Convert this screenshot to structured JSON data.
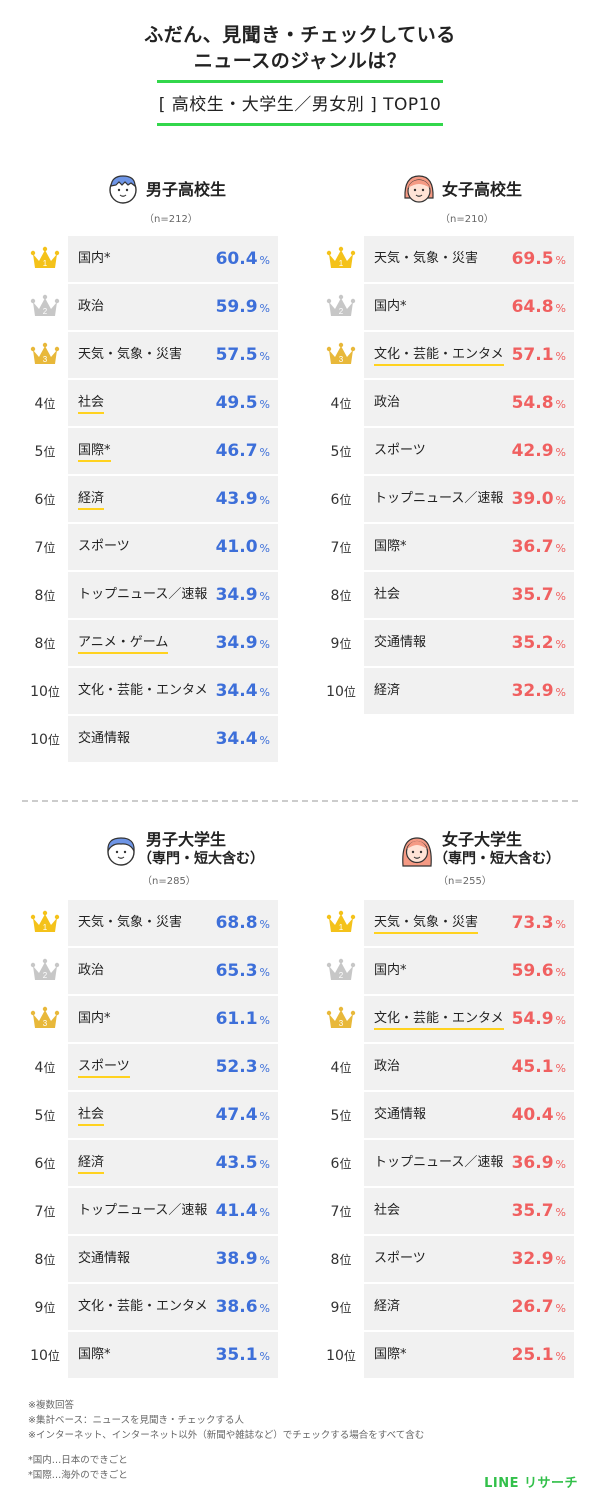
{
  "header": {
    "title_line1": "ふだん、見聞き・チェックしている",
    "title_line2": "ニュースのジャンルは？",
    "subtitle": "[ 高校生・大学生／男女別 ] TOP10"
  },
  "colors": {
    "male": "#3d6fd9",
    "female": "#f06060",
    "accent_green": "#32d74b",
    "underline_yellow": "#ffd21f",
    "gold": "#f4c21a",
    "silver": "#c7c7c7",
    "bronze": "#e8b83a"
  },
  "icons": {
    "male_hs": "boy-short-hair-icon",
    "female_hs": "girl-bob-hair-icon",
    "male_univ": "boy-blue-hair-icon",
    "female_univ": "girl-long-hair-icon",
    "rank1": "gold-crown-icon",
    "rank2": "silver-crown-icon",
    "rank3": "bronze-crown-icon"
  },
  "rank_suffix": "位",
  "percent_unit": "%",
  "chart_data": [
    {
      "type": "table",
      "title": "男子高校生",
      "n_label": "（n=212）",
      "rows": [
        {
          "rank": "1",
          "label": "国内*",
          "value": "60.4"
        },
        {
          "rank": "2",
          "label": "政治",
          "value": "59.9"
        },
        {
          "rank": "3",
          "label": "天気・気象・災害",
          "value": "57.5"
        },
        {
          "rank": "4",
          "label": "社会",
          "value": "49.5"
        },
        {
          "rank": "5",
          "label": "国際*",
          "value": "46.7"
        },
        {
          "rank": "6",
          "label": "経済",
          "value": "43.9"
        },
        {
          "rank": "7",
          "label": "スポーツ",
          "value": "41.0"
        },
        {
          "rank": "8",
          "label": "トップニュース／速報",
          "value": "34.9"
        },
        {
          "rank": "8",
          "label": "アニメ・ゲーム",
          "value": "34.9"
        },
        {
          "rank": "10",
          "label": "文化・芸能・エンタメ",
          "value": "34.4"
        },
        {
          "rank": "10",
          "label": "交通情報",
          "value": "34.4"
        }
      ]
    },
    {
      "type": "table",
      "title": "女子高校生",
      "n_label": "（n=210）",
      "rows": [
        {
          "rank": "1",
          "label": "天気・気象・災害",
          "value": "69.5"
        },
        {
          "rank": "2",
          "label": "国内*",
          "value": "64.8"
        },
        {
          "rank": "3",
          "label": "文化・芸能・エンタメ",
          "value": "57.1"
        },
        {
          "rank": "4",
          "label": "政治",
          "value": "54.8"
        },
        {
          "rank": "5",
          "label": "スポーツ",
          "value": "42.9"
        },
        {
          "rank": "6",
          "label": "トップニュース／速報",
          "value": "39.0"
        },
        {
          "rank": "7",
          "label": "国際*",
          "value": "36.7"
        },
        {
          "rank": "8",
          "label": "社会",
          "value": "35.7"
        },
        {
          "rank": "9",
          "label": "交通情報",
          "value": "35.2"
        },
        {
          "rank": "10",
          "label": "経済",
          "value": "32.9"
        }
      ]
    },
    {
      "type": "table",
      "title": "男子大学生",
      "subtitle": "（専門・短大含む）",
      "n_label": "（n=285）",
      "rows": [
        {
          "rank": "1",
          "label": "天気・気象・災害",
          "value": "68.8"
        },
        {
          "rank": "2",
          "label": "政治",
          "value": "65.3"
        },
        {
          "rank": "3",
          "label": "国内*",
          "value": "61.1"
        },
        {
          "rank": "4",
          "label": "スポーツ",
          "value": "52.3"
        },
        {
          "rank": "5",
          "label": "社会",
          "value": "47.4"
        },
        {
          "rank": "6",
          "label": "経済",
          "value": "43.5"
        },
        {
          "rank": "7",
          "label": "トップニュース／速報",
          "value": "41.4"
        },
        {
          "rank": "8",
          "label": "交通情報",
          "value": "38.9"
        },
        {
          "rank": "9",
          "label": "文化・芸能・エンタメ",
          "value": "38.6"
        },
        {
          "rank": "10",
          "label": "国際*",
          "value": "35.1"
        }
      ]
    },
    {
      "type": "table",
      "title": "女子大学生",
      "subtitle": "（専門・短大含む）",
      "n_label": "（n=255）",
      "rows": [
        {
          "rank": "1",
          "label": "天気・気象・災害",
          "value": "73.3"
        },
        {
          "rank": "2",
          "label": "国内*",
          "value": "59.6"
        },
        {
          "rank": "3",
          "label": "文化・芸能・エンタメ",
          "value": "54.9"
        },
        {
          "rank": "4",
          "label": "政治",
          "value": "45.1"
        },
        {
          "rank": "5",
          "label": "交通情報",
          "value": "40.4"
        },
        {
          "rank": "6",
          "label": "トップニュース／速報",
          "value": "36.9"
        },
        {
          "rank": "7",
          "label": "社会",
          "value": "35.7"
        },
        {
          "rank": "8",
          "label": "スポーツ",
          "value": "32.9"
        },
        {
          "rank": "9",
          "label": "経済",
          "value": "26.7"
        },
        {
          "rank": "10",
          "label": "国際*",
          "value": "25.1"
        }
      ]
    }
  ],
  "footnotes": {
    "note1": "※複数回答",
    "note2": "※集計ベース：ニュースを見聞き・チェックする人",
    "note3": "※インターネット、インターネット以外（新聞や雑誌など）でチェックする場合をすべて含む",
    "def1": "*国内…日本のできごと",
    "def2": "*国際…海外のできごと"
  },
  "brand": "LINE リサーチ"
}
